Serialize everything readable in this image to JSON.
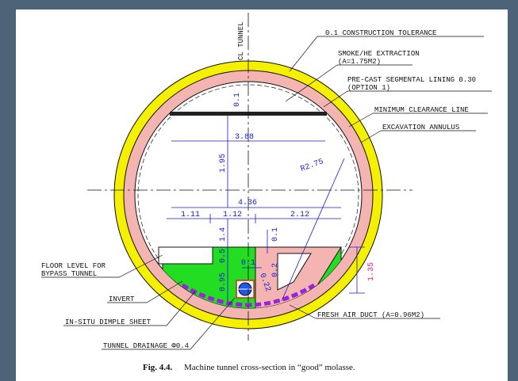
{
  "labels": [
    "0.1 CONSTRUCTION TOLERANCE",
    "SMOKE/HE EXTRACTION",
    "(A=1.75M2)",
    "PRE-CAST SEGMENTAL LINING 0.30",
    "(OPTION 1)",
    "MINIMUM CLEARANCE LINE",
    "EXCAVATION ANNULUS",
    "FLOOR LEVEL FOR",
    "BYPASS TUNNEL",
    "INVERT",
    "IN-SITU DIMPLE SHEET",
    "TUNNEL DRAINAGE Φ0.4",
    "FRESH AIR DUCT (A=0.96M2)",
    "CL TUNNEL"
  ],
  "dimensions": [
    "0.1",
    "3.88",
    "1.95",
    "R2.75",
    "4.36",
    "1.11",
    "1.12",
    "2.12",
    "1.4",
    "0.5",
    "0.1",
    "0.95",
    "0.1",
    "0.22",
    "0.2",
    "1.35"
  ],
  "caption": {
    "label": "Fig. 4.4.",
    "text": "Machine tunnel cross-section in “good” molasse."
  }
}
